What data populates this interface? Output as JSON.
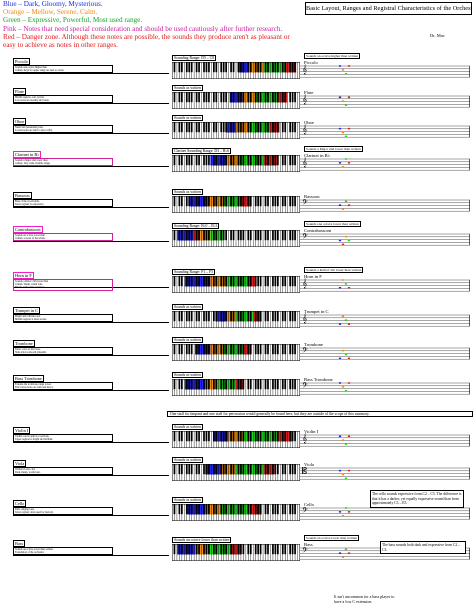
{
  "legend": [
    {
      "text": "Blue – Dark, Gloomy, Mysterious.",
      "color": "#1b2ee0"
    },
    {
      "text": "Orange – Mellow, Serene, Calm.",
      "color": "#f08c10"
    },
    {
      "text": "Green – Expressive, Powerful, Most used range.",
      "color": "#1aa12a"
    },
    {
      "text": "Pink – Notes that need special consideration and should be used cautiously after further research.",
      "color": "#d0209a"
    },
    {
      "text": "Red – Danger zone. Although these notes are possible, the sounds they produce aren't as pleasant or easy to achieve as notes in other ranges.",
      "color": "#e01b1b"
    }
  ],
  "title": "Basic Layout, Ranges and Registral Characteristics of the Orchestra",
  "author": "Dr. Mac",
  "colors": {
    "blue": "#2424ee",
    "orange": "#f08c10",
    "green": "#20d820",
    "pink": "#f020c8",
    "red": "#e02020"
  },
  "instruments": [
    {
      "name": "Piccolo",
      "y": 64,
      "kb_title": "Sounding Range: D5 – C8",
      "transpose_note": "Sounds an octave higher than written",
      "staff_label": "Piccolo",
      "clef": "treble",
      "desc": [
        "Sounds one octave higher than",
        "written. Keys for upper range are best to avoid."
      ],
      "segments": [
        {
          "c": "blue",
          "s": 0.52,
          "e": 0.6
        },
        {
          "c": "orange",
          "s": 0.6,
          "e": 0.72
        },
        {
          "c": "green",
          "s": 0.72,
          "e": 0.88
        },
        {
          "c": "red",
          "s": 0.88,
          "e": 0.97
        }
      ],
      "pink": false
    },
    {
      "name": "Flute",
      "y": 94,
      "kb_title": "Sounds as written",
      "transpose_note": "",
      "staff_label": "Flute",
      "clef": "treble",
      "desc": [
        "Middle register, soft, lyrical.",
        "Low notes are breathy and weak."
      ],
      "segments": [
        {
          "c": "blue",
          "s": 0.45,
          "e": 0.55
        },
        {
          "c": "orange",
          "s": 0.55,
          "e": 0.66
        },
        {
          "c": "green",
          "s": 0.66,
          "e": 0.82
        },
        {
          "c": "red",
          "s": 0.82,
          "e": 0.9
        }
      ],
      "pink": false
    },
    {
      "name": "Oboe",
      "y": 124,
      "kb_title": "Sounds as written",
      "transpose_note": "",
      "staff_label": "Oboe",
      "clef": "treble",
      "desc": [
        "Nasal and penetrating tone.",
        "Lowest notes are hard to play softly."
      ],
      "segments": [
        {
          "c": "blue",
          "s": 0.42,
          "e": 0.5
        },
        {
          "c": "orange",
          "s": 0.5,
          "e": 0.6
        },
        {
          "c": "green",
          "s": 0.6,
          "e": 0.76
        },
        {
          "c": "red",
          "s": 0.76,
          "e": 0.84
        }
      ],
      "pink": false
    },
    {
      "name": "Clarinet in B♭",
      "y": 157,
      "kb_title": "Clarinet Sounding Range: D3 – B♭6",
      "transpose_note": "Sounds a Major 2nd lower than written",
      "staff_label": "Clarinet in B♭",
      "clef": "treble",
      "desc": [
        "Sounds a Major 2nd lower than",
        "written. Very wide, flexible range."
      ],
      "segments": [
        {
          "c": "blue",
          "s": 0.3,
          "e": 0.42
        },
        {
          "c": "orange",
          "s": 0.42,
          "e": 0.52
        },
        {
          "c": "green",
          "s": 0.52,
          "e": 0.72
        },
        {
          "c": "red",
          "s": 0.72,
          "e": 0.82
        }
      ],
      "pink": true
    },
    {
      "name": "Bassoon",
      "y": 198,
      "kb_title": "Sounds as written",
      "transpose_note": "",
      "staff_label": "Bassoon",
      "clef": "bass",
      "desc": [
        "Bass of the woodwinds.",
        "Tenor register is expressive."
      ],
      "segments": [
        {
          "c": "blue",
          "s": 0.14,
          "e": 0.28
        },
        {
          "c": "orange",
          "s": 0.28,
          "e": 0.4
        },
        {
          "c": "green",
          "s": 0.4,
          "e": 0.54
        },
        {
          "c": "red",
          "s": 0.54,
          "e": 0.62
        }
      ],
      "pink": false
    },
    {
      "name": "Contrabassoon",
      "y": 232,
      "kb_title": "Sounding Range: B♭0 – B♭3",
      "transpose_note": "Sounds one octave lower than written",
      "staff_label": "Contrabassoon",
      "clef": "bass",
      "desc": [
        "Sounds an octave lower than",
        "written. Lowest of the winds."
      ],
      "segments": [
        {
          "c": "blue",
          "s": 0.04,
          "e": 0.17
        },
        {
          "c": "red",
          "s": 0.17,
          "e": 0.22
        },
        {
          "c": "orange",
          "s": 0.22,
          "e": 0.3
        },
        {
          "c": "green",
          "s": 0.3,
          "e": 0.4
        }
      ],
      "pink": true
    },
    {
      "name": "Horn in F",
      "y": 278,
      "kb_title": "Sounding Range: F1 – F5",
      "transpose_note": "Sounds a Perfect 5th lower than written",
      "staff_label": "Horn in F",
      "clef": "treble",
      "desc": [
        "Sounds a Perfect 5th lower than",
        "written. Warm, round tone.",
        "Blends with winds and brass."
      ],
      "segments": [
        {
          "c": "blue",
          "s": 0.1,
          "e": 0.3
        },
        {
          "c": "orange",
          "s": 0.3,
          "e": 0.42
        },
        {
          "c": "green",
          "s": 0.42,
          "e": 0.6
        },
        {
          "c": "red",
          "s": 0.6,
          "e": 0.66
        }
      ],
      "pink": true
    },
    {
      "name": "Trumpet in C",
      "y": 313,
      "kb_title": "Sounds as written",
      "transpose_note": "",
      "staff_label": "Trumpet in C",
      "clef": "treble",
      "desc": [
        "Bright and brilliant tone.",
        "Middle register is most secure."
      ],
      "segments": [
        {
          "c": "blue",
          "s": 0.34,
          "e": 0.42
        },
        {
          "c": "orange",
          "s": 0.42,
          "e": 0.5
        },
        {
          "c": "green",
          "s": 0.5,
          "e": 0.64
        },
        {
          "c": "red",
          "s": 0.64,
          "e": 0.7
        }
      ],
      "pink": false
    },
    {
      "name": "Trombone",
      "y": 346,
      "kb_title": "Sounds as written",
      "transpose_note": "",
      "staff_label": "Trombone",
      "clef": "bass",
      "desc": [
        "Tenor voice of the brass.",
        "Slide allows smooth glissandi."
      ],
      "segments": [
        {
          "c": "blue",
          "s": 0.18,
          "e": 0.3
        },
        {
          "c": "orange",
          "s": 0.3,
          "e": 0.4
        },
        {
          "c": "green",
          "s": 0.4,
          "e": 0.56
        },
        {
          "c": "red",
          "s": 0.56,
          "e": 0.62
        }
      ],
      "pink": false
    },
    {
      "name": "Bass Trombone",
      "y": 381,
      "kb_title": "Sounds as written",
      "transpose_note": "",
      "staff_label": "Bass Trombone",
      "clef": "bass",
      "desc": [
        "Extends the trombone range lower.",
        "The lowest notes are dark and heavy."
      ],
      "segments": [
        {
          "c": "blue",
          "s": 0.1,
          "e": 0.26
        },
        {
          "c": "orange",
          "s": 0.26,
          "e": 0.36
        },
        {
          "c": "green",
          "s": 0.36,
          "e": 0.5
        },
        {
          "c": "red",
          "s": 0.5,
          "e": 0.56
        }
      ],
      "pink": false
    },
    {
      "name": "Violin I",
      "y": 433,
      "kb_title": "Sounds as written",
      "transpose_note": "",
      "staff_label": "Violin I",
      "clef": "treble",
      "desc": [
        "Violins can be split in 2 sections.",
        "Upper register is bright and brilliant."
      ],
      "segments": [
        {
          "c": "blue",
          "s": 0.32,
          "e": 0.44
        },
        {
          "c": "orange",
          "s": 0.44,
          "e": 0.56
        },
        {
          "c": "green",
          "s": 0.56,
          "e": 0.82
        },
        {
          "c": "red",
          "s": 0.82,
          "e": 0.94
        }
      ],
      "pink": false
    },
    {
      "name": "Viola",
      "y": 466,
      "kb_title": "Sounds as written",
      "transpose_note": "",
      "staff_label": "Viola",
      "clef": "alto",
      "desc": [
        "Written in alto clef.",
        "Dark, husky, warm tone."
      ],
      "segments": [
        {
          "c": "blue",
          "s": 0.26,
          "e": 0.38
        },
        {
          "c": "orange",
          "s": 0.38,
          "e": 0.5
        },
        {
          "c": "green",
          "s": 0.5,
          "e": 0.72
        },
        {
          "c": "red",
          "s": 0.72,
          "e": 0.8
        }
      ],
      "pink": false
    },
    {
      "name": "Cello",
      "y": 506,
      "kb_title": "Sounds as written",
      "transpose_note": "",
      "staff_label": "Cello",
      "clef": "bass",
      "desc": [
        "Rich, singing tone.",
        "Tenor register often used for melody."
      ],
      "segments": [
        {
          "c": "blue",
          "s": 0.12,
          "e": 0.26
        },
        {
          "c": "orange",
          "s": 0.26,
          "e": 0.38
        },
        {
          "c": "green",
          "s": 0.38,
          "e": 0.62
        },
        {
          "c": "red",
          "s": 0.62,
          "e": 0.7
        }
      ],
      "pink": false
    },
    {
      "name": "Bass",
      "y": 546,
      "kb_title": "Sounds an octave lower than written",
      "transpose_note": "Sounds an octave lower than written",
      "staff_label": "Bass",
      "clef": "bass",
      "desc": [
        "Sounds an octave lower than written.",
        "Foundation of the orchestra."
      ],
      "segments": [
        {
          "c": "blue",
          "s": 0.04,
          "e": 0.18
        },
        {
          "c": "orange",
          "s": 0.18,
          "e": 0.28
        },
        {
          "c": "green",
          "s": 0.28,
          "e": 0.46
        },
        {
          "c": "red",
          "s": 0.46,
          "e": 0.54
        }
      ],
      "pink": false
    }
  ],
  "percussion_note": "One staff for timpani and one staff for percussion would generally be found here, but they are outside of the scope of this summary.",
  "cello_note": "The cello sounds expressive from C2 – C5. The difference is that it has a darker, yet equally expressive sound than from approximately C3 – E5.",
  "bass_note": "The bass sounds both dark and expressive from C2 – C3.",
  "bass_bottom_note": "It isn't uncommon for a bass player to have a low C extension."
}
